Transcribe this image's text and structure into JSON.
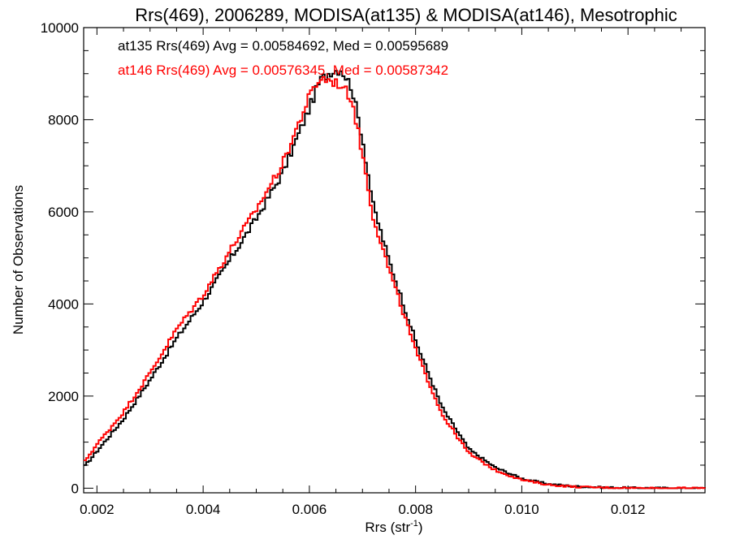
{
  "chart_data": {
    "type": "line",
    "title": "Rrs(469), 2006289, MODISA(at135) & MODISA(at146), Mesotrophic",
    "xlabel": "Rrs (str",
    "xlabel_sup": "-1",
    "xlabel_close": ")",
    "ylabel": "Number of Observations",
    "xlim": [
      0.00175,
      0.01345
    ],
    "ylim": [
      -100,
      10000
    ],
    "xticks": [
      0.002,
      0.004,
      0.006,
      0.008,
      0.01,
      0.012
    ],
    "xtick_labels": [
      "0.002",
      "0.004",
      "0.006",
      "0.008",
      "0.010",
      "0.012"
    ],
    "yticks": [
      0,
      2000,
      4000,
      6000,
      8000,
      10000
    ],
    "ytick_labels": [
      "0",
      "2000",
      "4000",
      "6000",
      "8000",
      "10000"
    ],
    "grid": false,
    "legend_position": "top-left",
    "bin_width": 4.68e-05,
    "series": [
      {
        "name": "at135 Rrs(469) Avg = 0.00584692, Med = 0.00595689",
        "color": "#000000",
        "x": [
          0.00175,
          0.002,
          0.0025,
          0.003,
          0.0035,
          0.004,
          0.0045,
          0.005,
          0.0055,
          0.006,
          0.0062,
          0.0064,
          0.0066,
          0.0068,
          0.007,
          0.0072,
          0.0075,
          0.008,
          0.0085,
          0.009,
          0.0095,
          0.01,
          0.0105,
          0.011,
          0.0115,
          0.012,
          0.0125,
          0.013,
          0.01345
        ],
        "y": [
          450,
          800,
          1500,
          2350,
          3250,
          4050,
          4950,
          5850,
          6850,
          8250,
          8850,
          9050,
          9100,
          8700,
          7600,
          6150,
          4950,
          3200,
          1750,
          850,
          450,
          210,
          90,
          40,
          18,
          8,
          3,
          1,
          0
        ]
      },
      {
        "name": "at146 Rrs(469) Avg = 0.00576345, Med = 0.00587342",
        "color": "#ff0000",
        "x": [
          0.00175,
          0.002,
          0.0025,
          0.003,
          0.0035,
          0.004,
          0.0045,
          0.005,
          0.0055,
          0.006,
          0.0062,
          0.0064,
          0.0066,
          0.0068,
          0.007,
          0.0072,
          0.0075,
          0.008,
          0.0085,
          0.009,
          0.0095,
          0.01,
          0.0105,
          0.011,
          0.0115,
          0.012,
          0.0125,
          0.013,
          0.01345
        ],
        "y": [
          550,
          950,
          1650,
          2500,
          3450,
          4200,
          5150,
          6050,
          7050,
          8500,
          8900,
          8850,
          8750,
          8450,
          7250,
          5900,
          4750,
          3000,
          1600,
          760,
          390,
          180,
          75,
          30,
          14,
          6,
          2,
          1,
          0
        ]
      }
    ]
  }
}
